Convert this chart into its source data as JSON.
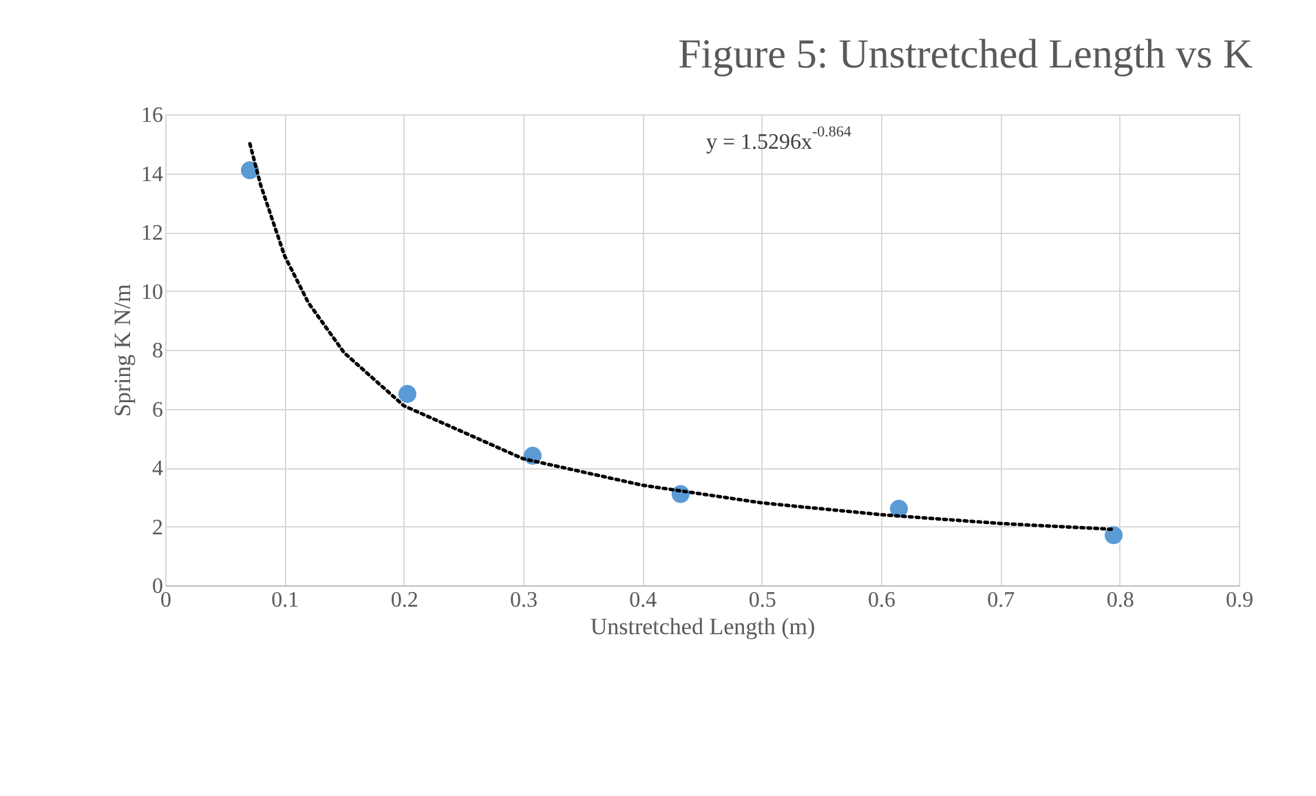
{
  "chart_data": {
    "type": "scatter",
    "title": "Figure 5: Unstretched Length vs K",
    "xlabel": "Unstretched Length (m)",
    "ylabel": "Spring K N/m",
    "xlim": [
      0,
      0.9
    ],
    "xticks": [
      0,
      0.1,
      0.2,
      0.3,
      0.4,
      0.5,
      0.6,
      0.7,
      0.8,
      0.9
    ],
    "ylim": [
      0,
      16
    ],
    "yticks": [
      0,
      2,
      4,
      6,
      8,
      10,
      12,
      14,
      16
    ],
    "grid": true,
    "marker": "circle",
    "series": [
      {
        "color": "#5b9bd5",
        "x": [
          0.071,
          0.203,
          0.308,
          0.432,
          0.615,
          0.795
        ],
        "values": [
          14.1,
          6.5,
          4.4,
          3.1,
          2.6,
          1.7
        ]
      },
      {
        "type": "line",
        "color": "#000000",
        "line_style": "dotted",
        "marker": "none",
        "x": [
          0.071,
          0.08,
          0.1,
          0.12,
          0.15,
          0.2,
          0.3,
          0.4,
          0.5,
          0.6,
          0.7,
          0.795
        ],
        "values": [
          15.0,
          13.6,
          11.2,
          9.6,
          7.9,
          6.1,
          4.3,
          3.4,
          2.8,
          2.4,
          2.1,
          1.9
        ]
      }
    ],
    "annotations": [
      "y = 1.5296x$^{-0.864}$"
    ]
  }
}
